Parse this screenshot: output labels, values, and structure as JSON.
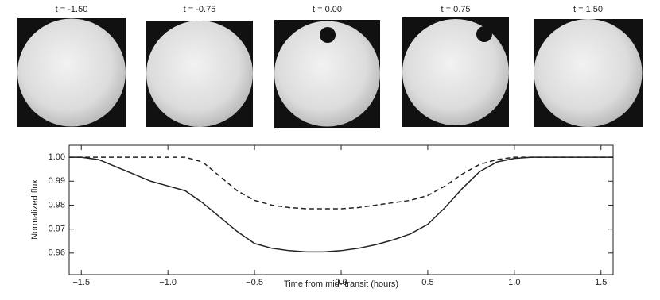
{
  "panels": [
    {
      "title": "t = -1.50"
    },
    {
      "title": "t = -0.75"
    },
    {
      "title": "t = 0.00"
    },
    {
      "title": "t = 0.75"
    },
    {
      "title": "t = 1.50"
    }
  ],
  "chart_data": {
    "type": "line",
    "xlabel": "Time from mid−transit (hours)",
    "ylabel": "Normalized flux",
    "x": [
      -1.57,
      -1.5,
      -1.4,
      -1.3,
      -1.2,
      -1.1,
      -1.0,
      -0.9,
      -0.8,
      -0.7,
      -0.6,
      -0.5,
      -0.4,
      -0.3,
      -0.2,
      -0.1,
      0,
      0.1,
      0.2,
      0.3,
      0.4,
      0.5,
      0.6,
      0.7,
      0.8,
      0.9,
      1.0,
      1.1,
      1.2,
      1.3,
      1.4,
      1.5,
      1.57
    ],
    "series": [
      {
        "color": "#222222",
        "dash": false,
        "values": [
          1.0,
          1.0,
          0.999,
          0.996,
          0.993,
          0.99,
          0.988,
          0.986,
          0.981,
          0.975,
          0.969,
          0.964,
          0.962,
          0.961,
          0.9605,
          0.9605,
          0.961,
          0.962,
          0.9635,
          0.9655,
          0.968,
          0.972,
          0.979,
          0.987,
          0.994,
          0.998,
          0.9995,
          1.0,
          1.0,
          1.0,
          1.0,
          1.0,
          1.0
        ]
      },
      {
        "color": "#222222",
        "dash": true,
        "values": [
          1.0,
          1.0,
          1.0,
          1.0,
          1.0,
          1.0,
          1.0,
          1.0,
          0.998,
          0.992,
          0.986,
          0.982,
          0.98,
          0.979,
          0.9785,
          0.9785,
          0.9785,
          0.979,
          0.98,
          0.981,
          0.982,
          0.984,
          0.988,
          0.993,
          0.997,
          0.999,
          1.0,
          1.0,
          1.0,
          1.0,
          1.0,
          1.0,
          1.0
        ]
      }
    ],
    "xlim": [
      -1.57,
      1.57
    ],
    "xticks": [
      {
        "value": -1.5,
        "label": "−1.5"
      },
      {
        "value": -1,
        "label": "−1.0"
      },
      {
        "value": -0.5,
        "label": "−0.5"
      },
      {
        "value": 0,
        "label": "0.0"
      },
      {
        "value": 0.5,
        "label": "0.5"
      },
      {
        "value": 1,
        "label": "1.0"
      },
      {
        "value": 1.5,
        "label": "1.5"
      }
    ],
    "ylim": [
      0.951,
      1.005
    ],
    "yticks": [
      0.96,
      0.97,
      0.98,
      0.99,
      {
        "value": 1,
        "label": "1.00"
      }
    ]
  }
}
